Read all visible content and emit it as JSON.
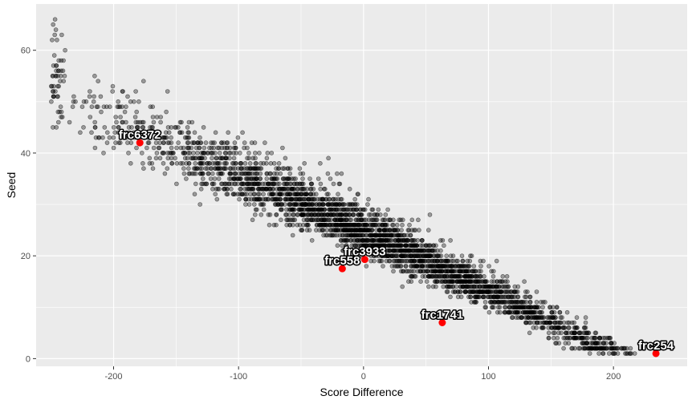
{
  "chart_data": {
    "type": "scatter",
    "title": "",
    "xlabel": "Score Difference",
    "ylabel": "Seed",
    "xlim": [
      -262,
      259
    ],
    "ylim": [
      -1.5,
      69
    ],
    "x_ticks": [
      -200,
      -100,
      0,
      100,
      200
    ],
    "x_tick_labels": [
      "-200",
      "-100",
      "0",
      "100",
      "200"
    ],
    "y_ticks": [
      0,
      20,
      40,
      60
    ],
    "y_tick_labels": [
      "0",
      "20",
      "40",
      "60"
    ],
    "grid": true,
    "legend": "none",
    "colors": {
      "panel_background": "#ebebeb",
      "grid": "#ffffff",
      "point": "#000000",
      "highlight": "#ff0000"
    },
    "scatter_trend": {
      "point_count": 3200,
      "slope": -0.118,
      "intercept": 24.5,
      "spread_sd": 7,
      "y_min": 1,
      "y_max": 66
    },
    "highlighted_points": [
      {
        "label": "frc6372",
        "x": -179,
        "y": 42
      },
      {
        "label": "frc3933",
        "x": 1,
        "y": 19.3
      },
      {
        "label": "frc558",
        "x": -17,
        "y": 17.5
      },
      {
        "label": "frc1741",
        "x": 63,
        "y": 7
      },
      {
        "label": "frc254",
        "x": 234,
        "y": 1
      }
    ]
  }
}
